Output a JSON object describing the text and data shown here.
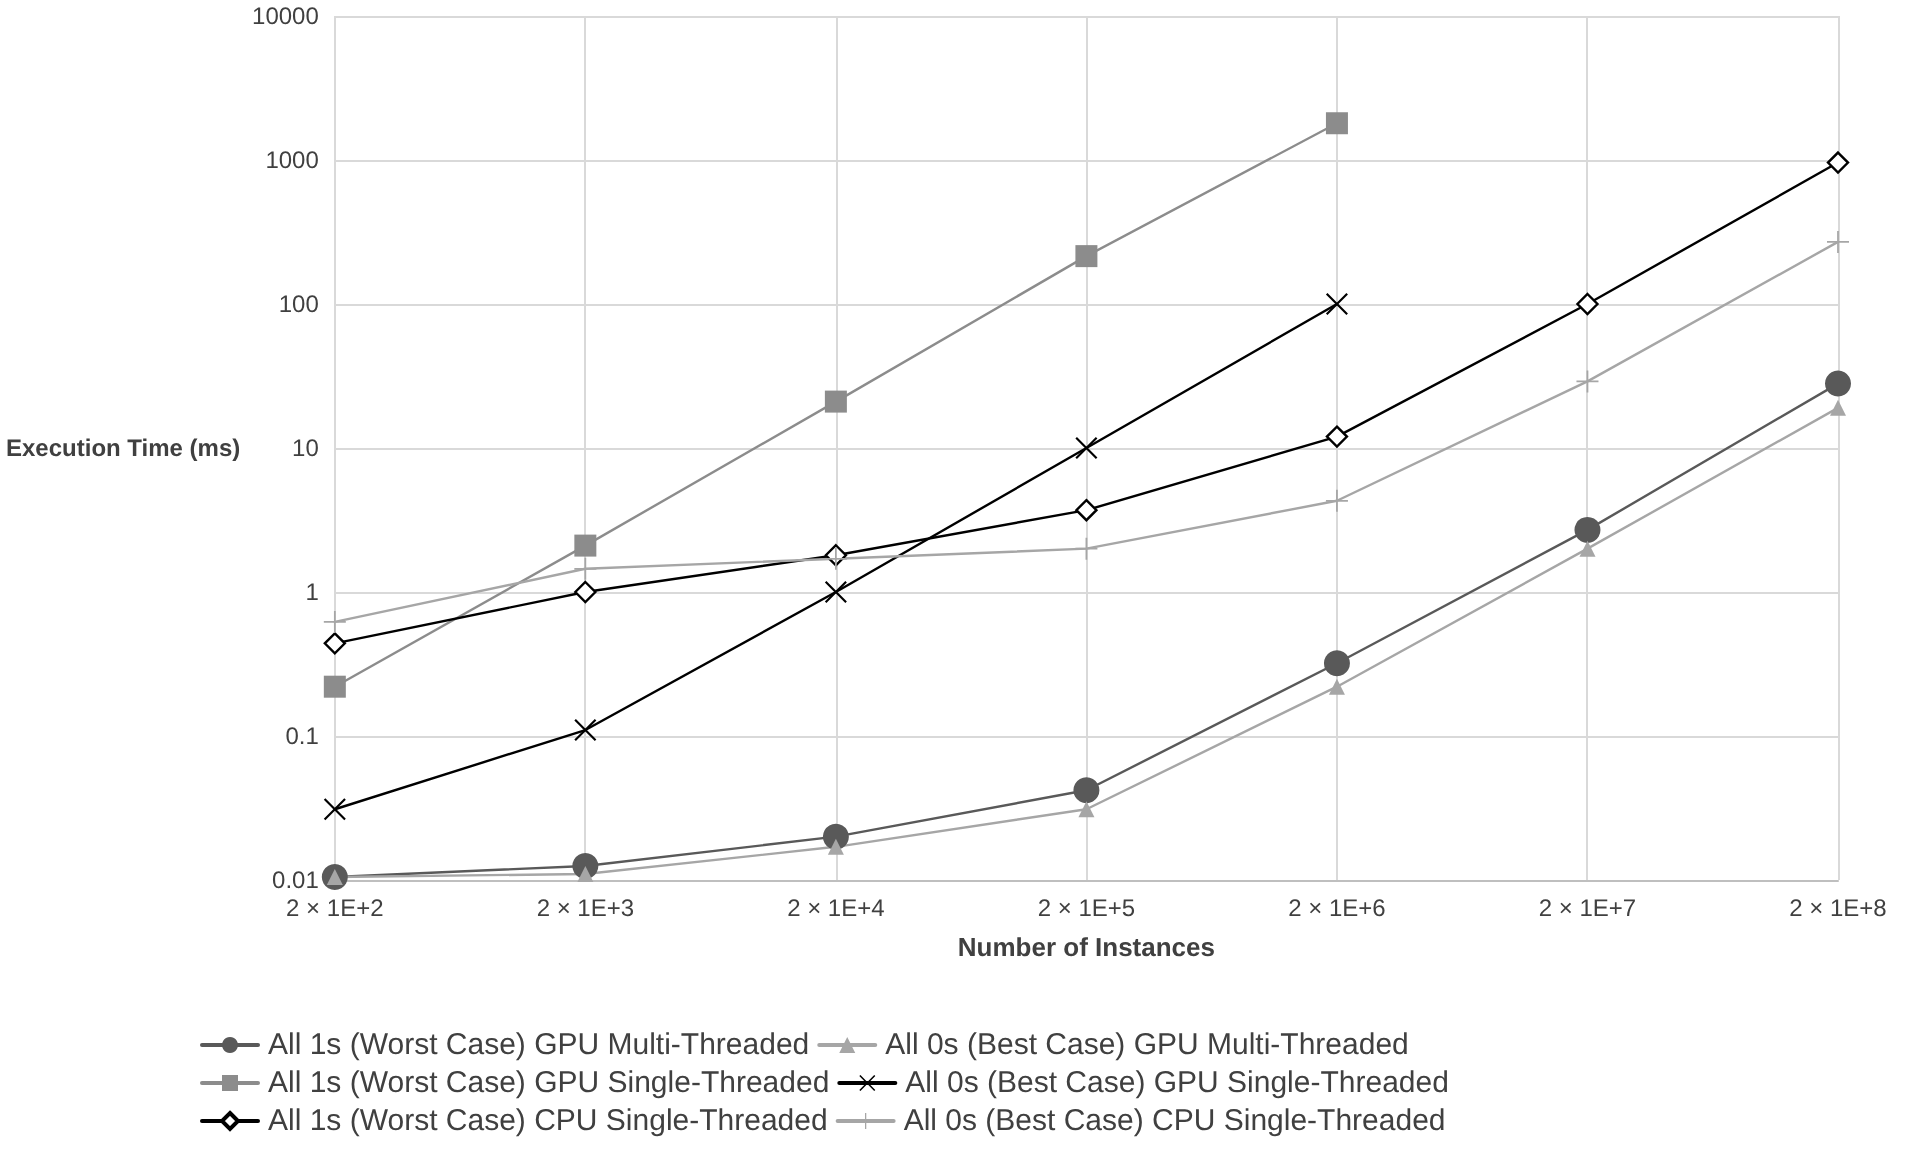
{
  "chart_data": {
    "type": "line",
    "xlabel": "Number of Instances",
    "ylabel": "Execution Time (ms)",
    "categories": [
      "2 × 1E+2",
      "2 × 1E+3",
      "2 × 1E+4",
      "2 × 1E+5",
      "2 × 1E+6",
      "2 × 1E+7",
      "2 × 1E+8"
    ],
    "series": [
      {
        "name": "All 1s (Worst Case) GPU Multi-Threaded",
        "color": "#595959",
        "marker": "circle",
        "values": [
          0.0105,
          0.0125,
          0.02,
          0.042,
          0.32,
          2.7,
          28
        ]
      },
      {
        "name": "All 0s (Best Case) GPU Multi-Threaded",
        "color": "#a6a6a6",
        "marker": "triangle",
        "values": [
          0.0105,
          0.011,
          0.017,
          0.031,
          0.22,
          2.0,
          19
        ]
      },
      {
        "name": "All 1s (Worst Case) GPU Single-Threaded",
        "color": "#8c8c8c",
        "marker": "square",
        "values": [
          0.22,
          2.1,
          21,
          215,
          1800,
          null,
          null
        ]
      },
      {
        "name": "All 0s (Best Case) GPU Single-Threaded",
        "color": "#000000",
        "marker": "x",
        "values": [
          0.031,
          0.11,
          1,
          10,
          100,
          null,
          null
        ]
      },
      {
        "name": "All 1s (Worst Case) CPU Single-Threaded",
        "color": "#000000",
        "marker": "diamond",
        "values": [
          0.44,
          1,
          1.8,
          3.7,
          12,
          100,
          960
        ]
      },
      {
        "name": "All 0s (Best Case) CPU Single-Threaded",
        "color": "#a6a6a6",
        "marker": "cross",
        "values": [
          0.62,
          1.45,
          1.7,
          2.0,
          4.3,
          29,
          270
        ]
      }
    ],
    "log": "y",
    "ylim": [
      0.01,
      10000
    ],
    "yticks": [
      0.01,
      0.1,
      1,
      10,
      100,
      1000,
      10000
    ],
    "grid": true,
    "legend": "bottom"
  }
}
